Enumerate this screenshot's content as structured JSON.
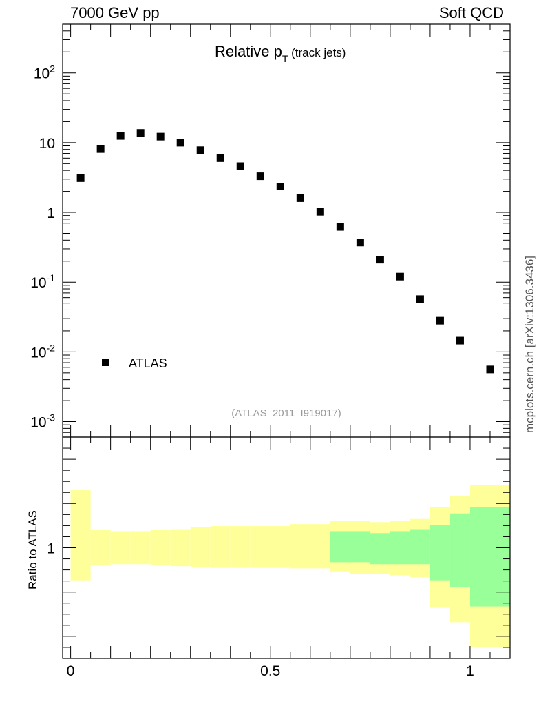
{
  "header": {
    "left": "7000 GeV pp",
    "right": "Soft QCD"
  },
  "side_label": "mcplots.cern.ch [arXiv:1306.3436]",
  "chart_data": [
    {
      "type": "scatter",
      "title": {
        "main": "Relative p",
        "sub": "T",
        "suffix": " (track jets)"
      },
      "reference": "(ATLAS_2011_I919017)",
      "yscale": "log",
      "ylim": [
        0.0006,
        500
      ],
      "xlim": [
        -0.02,
        1.1
      ],
      "legend": {
        "position": "left",
        "entries": [
          "ATLAS"
        ]
      },
      "ytick_labels": [
        {
          "v": 0.001,
          "base": "10",
          "exp": "-3"
        },
        {
          "v": 0.01,
          "base": "10",
          "exp": "-2"
        },
        {
          "v": 0.1,
          "base": "10",
          "exp": "-1"
        },
        {
          "v": 1,
          "base": "1",
          "exp": ""
        },
        {
          "v": 10,
          "base": "10",
          "exp": ""
        },
        {
          "v": 100,
          "base": "10",
          "exp": "2"
        }
      ],
      "series": [
        {
          "name": "ATLAS",
          "x": [
            0.025,
            0.075,
            0.125,
            0.175,
            0.225,
            0.275,
            0.325,
            0.375,
            0.425,
            0.475,
            0.525,
            0.575,
            0.625,
            0.675,
            0.725,
            0.775,
            0.825,
            0.875,
            0.925,
            0.975,
            1.05
          ],
          "y": [
            3.1,
            8.1,
            12.5,
            13.8,
            12.2,
            10.0,
            7.8,
            6.0,
            4.6,
            3.3,
            2.35,
            1.6,
            1.02,
            0.62,
            0.37,
            0.21,
            0.12,
            0.057,
            0.028,
            0.0145,
            0.0056
          ]
        }
      ]
    },
    {
      "type": "area",
      "ylabel": "Ratio to ATLAS",
      "ylim": [
        0.5,
        1.5
      ],
      "xlim": [
        -0.02,
        1.1
      ],
      "yticks": [
        {
          "v": 1,
          "label": "1"
        }
      ],
      "xticks": [
        {
          "v": 0,
          "label": "0"
        },
        {
          "v": 0.5,
          "label": "0.5"
        },
        {
          "v": 1,
          "label": "1"
        }
      ],
      "bins": [
        {
          "x0": 0.0,
          "x1": 0.05,
          "yellow": [
            0.853,
            1.261
          ],
          "green": null
        },
        {
          "x0": 0.05,
          "x1": 0.1,
          "yellow": [
            0.922,
            1.08
          ],
          "green": null
        },
        {
          "x0": 0.1,
          "x1": 0.15,
          "yellow": [
            0.926,
            1.075
          ],
          "green": null
        },
        {
          "x0": 0.15,
          "x1": 0.2,
          "yellow": [
            0.926,
            1.075
          ],
          "green": null
        },
        {
          "x0": 0.2,
          "x1": 0.25,
          "yellow": [
            0.922,
            1.08
          ],
          "green": null
        },
        {
          "x0": 0.25,
          "x1": 0.3,
          "yellow": [
            0.917,
            1.084
          ],
          "green": null
        },
        {
          "x0": 0.3,
          "x1": 0.35,
          "yellow": [
            0.911,
            1.094
          ],
          "green": null
        },
        {
          "x0": 0.35,
          "x1": 0.4,
          "yellow": [
            0.909,
            1.098
          ],
          "green": null
        },
        {
          "x0": 0.4,
          "x1": 0.45,
          "yellow": [
            0.909,
            1.098
          ],
          "green": null
        },
        {
          "x0": 0.45,
          "x1": 0.5,
          "yellow": [
            0.909,
            1.098
          ],
          "green": null
        },
        {
          "x0": 0.5,
          "x1": 0.55,
          "yellow": [
            0.909,
            1.098
          ],
          "green": null
        },
        {
          "x0": 0.55,
          "x1": 0.6,
          "yellow": [
            0.907,
            1.107
          ],
          "green": null
        },
        {
          "x0": 0.6,
          "x1": 0.65,
          "yellow": [
            0.907,
            1.107
          ],
          "green": null
        },
        {
          "x0": 0.65,
          "x1": 0.7,
          "yellow": [
            0.893,
            1.123
          ],
          "green": [
            0.935,
            1.075
          ]
        },
        {
          "x0": 0.7,
          "x1": 0.75,
          "yellow": [
            0.883,
            1.123
          ],
          "green": [
            0.935,
            1.075
          ]
        },
        {
          "x0": 0.75,
          "x1": 0.8,
          "yellow": [
            0.883,
            1.116
          ],
          "green": [
            0.926,
            1.066
          ]
        },
        {
          "x0": 0.8,
          "x1": 0.85,
          "yellow": [
            0.875,
            1.123
          ],
          "green": [
            0.926,
            1.075
          ]
        },
        {
          "x0": 0.85,
          "x1": 0.9,
          "yellow": [
            0.867,
            1.13
          ],
          "green": [
            0.926,
            1.084
          ]
        },
        {
          "x0": 0.9,
          "x1": 0.95,
          "yellow": [
            0.729,
            1.184
          ],
          "green": [
            0.853,
            1.104
          ]
        },
        {
          "x0": 0.95,
          "x1": 1.0,
          "yellow": [
            0.664,
            1.233
          ],
          "green": [
            0.822,
            1.155
          ]
        },
        {
          "x0": 1.0,
          "x1": 1.1,
          "yellow": [
            0.552,
            1.283
          ],
          "green": [
            0.735,
            1.183
          ]
        }
      ],
      "colors": {
        "yellow": "#ffff99",
        "green": "#99ff99"
      }
    }
  ]
}
